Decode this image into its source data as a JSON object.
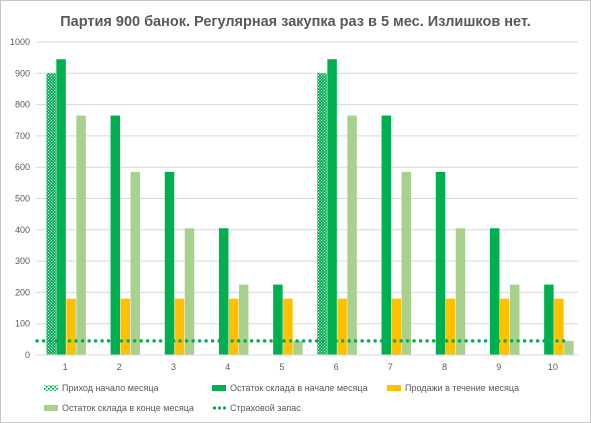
{
  "chart_data": {
    "type": "bar",
    "title": "Партия 900 банок. Регулярная закупка  раз в 5 мес. Излишков нет.",
    "categories": [
      "1",
      "2",
      "3",
      "4",
      "5",
      "6",
      "7",
      "8",
      "9",
      "10"
    ],
    "ylim": [
      0,
      1000
    ],
    "yticks": [
      "0",
      "100",
      "200",
      "300",
      "400",
      "500",
      "600",
      "700",
      "800",
      "900",
      "1000"
    ],
    "grid": true,
    "legend_position": "bottom",
    "series": [
      {
        "name": "Приход начало месяца",
        "color": "#00b050",
        "pattern": "hatch",
        "values": [
          900,
          0,
          0,
          0,
          0,
          900,
          0,
          0,
          0,
          0
        ]
      },
      {
        "name": "Остаток склада в начале месяца",
        "color": "#00b050",
        "values": [
          945,
          765,
          585,
          405,
          225,
          945,
          765,
          585,
          405,
          225
        ]
      },
      {
        "name": "Продажи в течение  месяца",
        "color": "#ffc000",
        "values": [
          180,
          180,
          180,
          180,
          180,
          180,
          180,
          180,
          180,
          180
        ]
      },
      {
        "name": "Остаток склада в конце месяца",
        "color": "#a9d18e",
        "values": [
          765,
          585,
          405,
          225,
          45,
          765,
          585,
          405,
          225,
          45
        ]
      },
      {
        "name": "Страховой запас",
        "color": "#00b050",
        "type": "line",
        "style": "dotted",
        "values": [
          45,
          45,
          45,
          45,
          45,
          45,
          45,
          45,
          45,
          45
        ]
      }
    ]
  }
}
